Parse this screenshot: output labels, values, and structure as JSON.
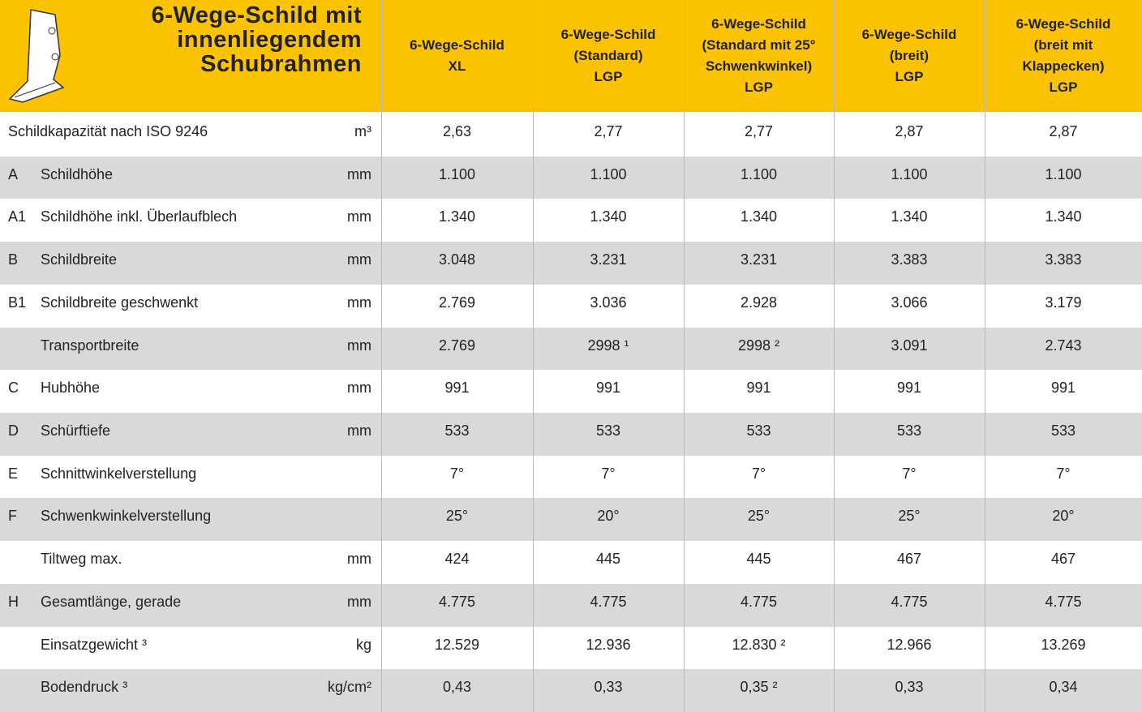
{
  "header": {
    "title": [
      "6-Wege-Schild mit",
      "innenliegendem",
      "Schubrahmen"
    ],
    "columns": [
      {
        "lines": [
          "6-Wege-Schild"
        ],
        "sub": "XL"
      },
      {
        "lines": [
          "6-Wege-Schild",
          "(Standard)"
        ],
        "sub": "LGP"
      },
      {
        "lines": [
          "6-Wege-Schild",
          "(Standard mit 25°",
          "Schwenkwinkel)"
        ],
        "sub": "LGP"
      },
      {
        "lines": [
          "6-Wege-Schild",
          "(breit)"
        ],
        "sub": "LGP"
      },
      {
        "lines": [
          "6-Wege-Schild",
          "(breit mit",
          "Klappecken)"
        ],
        "sub": "LGP"
      }
    ]
  },
  "table": {
    "rows": [
      {
        "label": "Schildkapazität nach ISO 9246",
        "unit": "m³",
        "values": [
          "2,63",
          "2,77",
          "2,77",
          "2,87",
          "2,87"
        ]
      },
      {
        "code": "A",
        "label": "Schildhöhe",
        "unit": "mm",
        "values": [
          "1.100",
          "1.100",
          "1.100",
          "1.100",
          "1.100"
        ]
      },
      {
        "code": "A1",
        "label": "Schildhöhe inkl. Überlaufblech",
        "unit": "mm",
        "values": [
          "1.340",
          "1.340",
          "1.340",
          "1.340",
          "1.340"
        ]
      },
      {
        "code": "B",
        "label": "Schildbreite",
        "unit": "mm",
        "values": [
          "3.048",
          "3.231",
          "3.231",
          "3.383",
          "3.383"
        ]
      },
      {
        "code": "B1",
        "label": "Schildbreite geschwenkt",
        "unit": "mm",
        "values": [
          "2.769",
          "3.036",
          "2.928",
          "3.066",
          "3.179"
        ]
      },
      {
        "label": "Transportbreite",
        "unit": "mm",
        "values": [
          "2.769",
          "2998 ¹",
          "2998 ²",
          "3.091",
          "2.743"
        ]
      },
      {
        "code": "C",
        "label": "Hubhöhe",
        "unit": "mm",
        "values": [
          "991",
          "991",
          "991",
          "991",
          "991"
        ]
      },
      {
        "code": "D",
        "label": "Schürftiefe",
        "unit": "mm",
        "values": [
          "533",
          "533",
          "533",
          "533",
          "533"
        ]
      },
      {
        "code": "E",
        "label": "Schnittwinkelverstellung",
        "values": [
          "7°",
          "7°",
          "7°",
          "7°",
          "7°"
        ]
      },
      {
        "code": "F",
        "label": "Schwenkwinkelverstellung",
        "values": [
          "25°",
          "20°",
          "25°",
          "25°",
          "20°"
        ]
      },
      {
        "label": "Tiltweg max.",
        "unit": "mm",
        "values": [
          "424",
          "445",
          "445",
          "467",
          "467"
        ]
      },
      {
        "code": "H",
        "label": "Gesamtlänge, gerade",
        "unit": "mm",
        "values": [
          "4.775",
          "4.775",
          "4.775",
          "4.775",
          "4.775"
        ]
      },
      {
        "label": "Einsatzgewicht ³",
        "unit": "kg",
        "values": [
          "12.529",
          "12.936",
          "12.830 ²",
          "12.966",
          "13.269"
        ]
      },
      {
        "label": "Bodendruck ³",
        "unit": "kg/cm²",
        "values": [
          "0,43",
          "0,33",
          "0,35 ²",
          "0,33",
          "0,34"
        ]
      }
    ]
  }
}
